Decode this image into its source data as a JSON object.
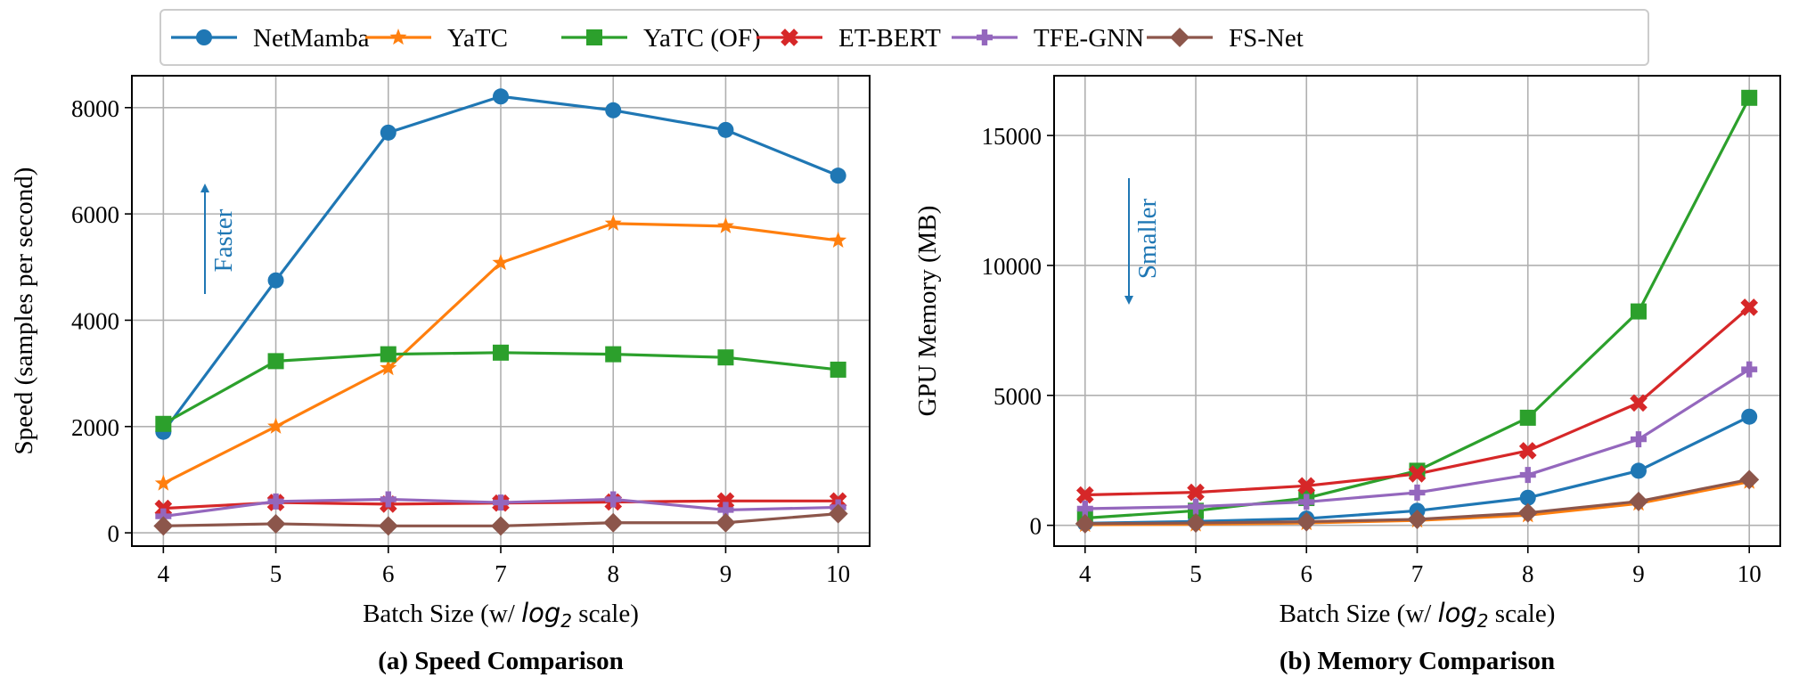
{
  "legend": [
    {
      "name": "NetMamba",
      "color": "#1f77b4",
      "marker": "circle"
    },
    {
      "name": "YaTC",
      "color": "#ff7f0e",
      "marker": "star"
    },
    {
      "name": "YaTC (OF)",
      "color": "#2ca02c",
      "marker": "square"
    },
    {
      "name": "ET-BERT",
      "color": "#d62728",
      "marker": "x"
    },
    {
      "name": "TFE-GNN",
      "color": "#9467bd",
      "marker": "plus"
    },
    {
      "name": "FS-Net",
      "color": "#8c564b",
      "marker": "diamond"
    }
  ],
  "legend_placement": "top-center, spanning both panels",
  "chart_data": [
    {
      "type": "line",
      "caption": "(a) Speed Comparison",
      "xlabel_prefix": "Batch Size (w/ ",
      "xlabel_math": "log",
      "xlabel_sub": "2",
      "xlabel_suffix": " scale)",
      "ylabel": "Speed (samples per second)",
      "x": [
        4,
        5,
        6,
        7,
        8,
        9,
        10
      ],
      "xlim": [
        3.72,
        10.28
      ],
      "ylim": [
        -250,
        8600
      ],
      "yticks": [
        0,
        2000,
        4000,
        6000,
        8000
      ],
      "grid": true,
      "annotation": {
        "text": "Faster",
        "direction": "up",
        "color": "#1f77b4"
      },
      "series": [
        {
          "name": "NetMamba",
          "values": [
            1900,
            4750,
            7530,
            8210,
            7950,
            7580,
            6720
          ]
        },
        {
          "name": "YaTC",
          "values": [
            930,
            2000,
            3100,
            5080,
            5820,
            5770,
            5500
          ]
        },
        {
          "name": "YaTC (OF)",
          "values": [
            2050,
            3230,
            3360,
            3390,
            3360,
            3300,
            3070
          ]
        },
        {
          "name": "ET-BERT",
          "values": [
            460,
            570,
            540,
            560,
            580,
            600,
            600
          ]
        },
        {
          "name": "TFE-GNN",
          "values": [
            310,
            590,
            630,
            570,
            630,
            430,
            480
          ]
        },
        {
          "name": "FS-Net",
          "values": [
            130,
            170,
            130,
            130,
            190,
            190,
            360
          ]
        }
      ]
    },
    {
      "type": "line",
      "caption": "(b) Memory Comparison",
      "xlabel_prefix": "Batch Size (w/ ",
      "xlabel_math": "log",
      "xlabel_sub": "2",
      "xlabel_suffix": " scale)",
      "ylabel": "GPU Memory (MB)",
      "x": [
        4,
        5,
        6,
        7,
        8,
        9,
        10
      ],
      "xlim": [
        3.72,
        10.28
      ],
      "ylim": [
        -800,
        17300
      ],
      "yticks": [
        0,
        5000,
        10000,
        15000
      ],
      "grid": true,
      "annotation": {
        "text": "Smaller",
        "direction": "down",
        "color": "#1f77b4"
      },
      "series": [
        {
          "name": "NetMamba",
          "values": [
            80,
            150,
            260,
            560,
            1060,
            2100,
            4180
          ]
        },
        {
          "name": "YaTC",
          "values": [
            20,
            40,
            90,
            190,
            390,
            840,
            1680
          ]
        },
        {
          "name": "YaTC (OF)",
          "values": [
            280,
            560,
            1050,
            2100,
            4140,
            8230,
            16450
          ]
        },
        {
          "name": "ET-BERT",
          "values": [
            1170,
            1270,
            1520,
            1980,
            2870,
            4710,
            8390
          ]
        },
        {
          "name": "TFE-GNN",
          "values": [
            640,
            720,
            900,
            1260,
            1940,
            3310,
            6000
          ]
        },
        {
          "name": "FS-Net",
          "values": [
            60,
            90,
            140,
            230,
            480,
            920,
            1760
          ]
        }
      ]
    }
  ]
}
